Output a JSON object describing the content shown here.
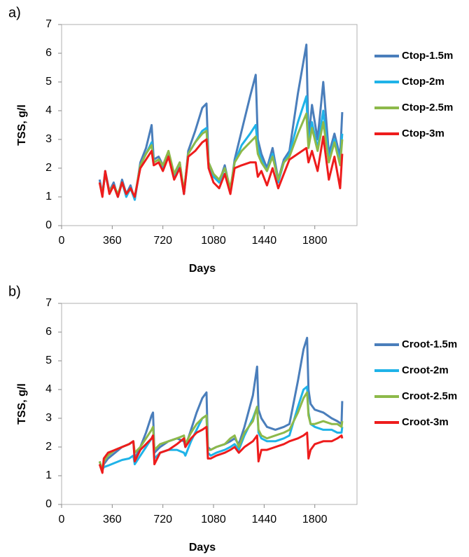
{
  "chart_data": [
    {
      "type": "line",
      "panel_label": "a)",
      "ylabel": "TSS, g/l",
      "xlabel": "Days",
      "xlim": [
        0,
        2100
      ],
      "xticks": [
        0,
        360,
        720,
        1080,
        1440,
        1800
      ],
      "ylim": [
        0,
        7
      ],
      "yticks": [
        0,
        1,
        2,
        3,
        4,
        5,
        6,
        7
      ],
      "grid": false,
      "legend": "right",
      "x": [
        270,
        290,
        310,
        340,
        370,
        400,
        430,
        460,
        490,
        520,
        560,
        600,
        640,
        655,
        690,
        720,
        760,
        800,
        840,
        870,
        900,
        950,
        1000,
        1030,
        1045,
        1080,
        1120,
        1160,
        1200,
        1230,
        1280,
        1340,
        1380,
        1395,
        1420,
        1460,
        1500,
        1540,
        1580,
        1620,
        1680,
        1740,
        1755,
        1780,
        1820,
        1860,
        1900,
        1940,
        1980,
        1995
      ],
      "series": [
        {
          "name": "Ctop-1.5m",
          "color": "#4a7ebb",
          "values": [
            1.6,
            1.1,
            1.9,
            1.2,
            1.5,
            1.0,
            1.6,
            1.1,
            1.4,
            0.9,
            2.2,
            2.7,
            3.5,
            2.3,
            2.4,
            2.1,
            2.5,
            1.8,
            2.2,
            1.1,
            2.6,
            3.3,
            4.1,
            4.25,
            2.2,
            1.8,
            1.5,
            2.1,
            1.2,
            2.3,
            3.3,
            4.5,
            5.25,
            3.0,
            2.5,
            2.0,
            2.7,
            1.6,
            2.3,
            2.6,
            4.6,
            6.3,
            3.0,
            4.2,
            3.0,
            5.0,
            2.5,
            3.2,
            2.4,
            3.95
          ]
        },
        {
          "name": "Ctop-2m",
          "color": "#1fb3e8",
          "values": [
            1.5,
            1.1,
            1.8,
            1.2,
            1.4,
            1.0,
            1.5,
            1.0,
            1.3,
            0.9,
            2.1,
            2.5,
            2.9,
            2.2,
            2.3,
            2.0,
            2.4,
            1.7,
            2.1,
            1.1,
            2.5,
            2.9,
            3.3,
            3.4,
            2.1,
            1.7,
            1.5,
            2.0,
            1.2,
            2.2,
            2.8,
            3.2,
            3.5,
            2.7,
            2.3,
            1.9,
            2.5,
            1.5,
            2.2,
            2.5,
            3.6,
            4.5,
            2.8,
            3.6,
            2.7,
            4.0,
            2.3,
            3.0,
            2.2,
            3.2
          ]
        },
        {
          "name": "Ctop-2.5m",
          "color": "#8db94a",
          "values": [
            1.5,
            1.1,
            1.8,
            1.2,
            1.4,
            1.1,
            1.5,
            1.1,
            1.3,
            1.0,
            2.1,
            2.5,
            2.8,
            2.2,
            2.3,
            2.1,
            2.6,
            1.8,
            2.2,
            1.2,
            2.5,
            2.9,
            3.2,
            3.3,
            2.2,
            1.8,
            1.6,
            2.0,
            1.3,
            2.2,
            2.6,
            2.9,
            3.1,
            2.5,
            2.2,
            1.9,
            2.4,
            1.6,
            2.2,
            2.4,
            3.2,
            3.9,
            2.7,
            3.4,
            2.6,
            3.6,
            2.2,
            2.9,
            2.1,
            3.0
          ]
        },
        {
          "name": "Ctop-3m",
          "color": "#ee1c1c",
          "values": [
            1.5,
            1.0,
            1.9,
            1.1,
            1.4,
            1.0,
            1.5,
            1.1,
            1.3,
            1.0,
            2.0,
            2.3,
            2.6,
            2.1,
            2.2,
            1.9,
            2.4,
            1.6,
            2.0,
            1.1,
            2.4,
            2.6,
            2.9,
            3.0,
            2.0,
            1.5,
            1.3,
            1.8,
            1.1,
            2.0,
            2.1,
            2.2,
            2.2,
            1.7,
            1.9,
            1.4,
            2.0,
            1.3,
            1.8,
            2.3,
            2.5,
            2.7,
            2.2,
            2.6,
            1.9,
            3.1,
            1.6,
            2.4,
            1.3,
            2.5
          ]
        }
      ]
    },
    {
      "type": "line",
      "panel_label": "b)",
      "ylabel": "TSS, g/l",
      "xlabel": "Days",
      "xlim": [
        0,
        2100
      ],
      "xticks": [
        0,
        360,
        720,
        1080,
        1440,
        1800
      ],
      "ylim": [
        0,
        7
      ],
      "yticks": [
        0,
        1,
        2,
        3,
        4,
        5,
        6,
        7
      ],
      "grid": false,
      "legend": "right",
      "x": [
        270,
        290,
        300,
        330,
        380,
        430,
        480,
        510,
        520,
        560,
        600,
        640,
        650,
        660,
        700,
        760,
        820,
        870,
        880,
        920,
        960,
        1000,
        1030,
        1040,
        1060,
        1100,
        1160,
        1200,
        1230,
        1260,
        1300,
        1360,
        1390,
        1400,
        1420,
        1460,
        1520,
        1580,
        1620,
        1680,
        1720,
        1745,
        1755,
        1770,
        1800,
        1860,
        1920,
        1960,
        1990,
        1995
      ],
      "series": [
        {
          "name": "Croot-1.5m",
          "color": "#4a7ebb",
          "values": [
            1.5,
            1.2,
            1.4,
            1.6,
            1.8,
            2.0,
            2.1,
            2.2,
            1.6,
            2.0,
            2.5,
            3.1,
            3.2,
            1.8,
            2.0,
            2.2,
            2.3,
            2.2,
            2.0,
            2.6,
            3.2,
            3.7,
            3.9,
            2.0,
            1.9,
            2.0,
            2.1,
            2.2,
            2.3,
            2.1,
            2.7,
            3.8,
            4.8,
            3.3,
            3.0,
            2.7,
            2.6,
            2.7,
            2.8,
            4.3,
            5.4,
            5.8,
            4.0,
            3.5,
            3.3,
            3.2,
            3.0,
            2.9,
            2.8,
            3.6
          ]
        },
        {
          "name": "Croot-2m",
          "color": "#1fb3e8",
          "values": [
            1.4,
            1.2,
            1.3,
            1.35,
            1.45,
            1.55,
            1.6,
            1.7,
            1.4,
            1.7,
            2.0,
            2.3,
            2.4,
            1.6,
            1.8,
            1.9,
            1.9,
            1.8,
            1.7,
            2.2,
            2.6,
            3.0,
            3.1,
            1.8,
            1.7,
            1.8,
            1.9,
            2.0,
            2.1,
            1.9,
            2.4,
            3.0,
            3.4,
            2.5,
            2.3,
            2.2,
            2.2,
            2.3,
            2.4,
            3.4,
            4.0,
            4.1,
            3.2,
            2.8,
            2.7,
            2.6,
            2.6,
            2.5,
            2.5,
            2.7
          ]
        },
        {
          "name": "Croot-2.5m",
          "color": "#8db94a",
          "values": [
            1.5,
            1.2,
            1.5,
            1.7,
            1.9,
            2.0,
            2.1,
            2.2,
            1.8,
            2.0,
            2.3,
            2.6,
            2.7,
            1.9,
            2.1,
            2.2,
            2.3,
            2.4,
            2.1,
            2.5,
            2.8,
            3.0,
            3.1,
            1.9,
            1.9,
            2.0,
            2.1,
            2.3,
            2.4,
            2.0,
            2.5,
            2.9,
            3.4,
            2.6,
            2.4,
            2.3,
            2.4,
            2.5,
            2.6,
            3.2,
            3.7,
            3.9,
            3.1,
            2.8,
            2.8,
            2.9,
            2.8,
            2.8,
            2.7,
            2.9
          ]
        },
        {
          "name": "Croot-3m",
          "color": "#ee1c1c",
          "values": [
            1.4,
            1.1,
            1.6,
            1.8,
            1.9,
            2.0,
            2.1,
            2.2,
            1.5,
            1.9,
            2.1,
            2.3,
            2.4,
            1.4,
            1.8,
            1.9,
            2.1,
            2.3,
            2.0,
            2.3,
            2.5,
            2.6,
            2.7,
            1.6,
            1.6,
            1.7,
            1.8,
            1.9,
            2.0,
            1.8,
            2.0,
            2.2,
            2.4,
            1.5,
            1.9,
            1.9,
            2.0,
            2.1,
            2.2,
            2.3,
            2.4,
            2.5,
            1.6,
            1.9,
            2.1,
            2.2,
            2.2,
            2.3,
            2.4,
            2.3
          ]
        }
      ]
    }
  ]
}
